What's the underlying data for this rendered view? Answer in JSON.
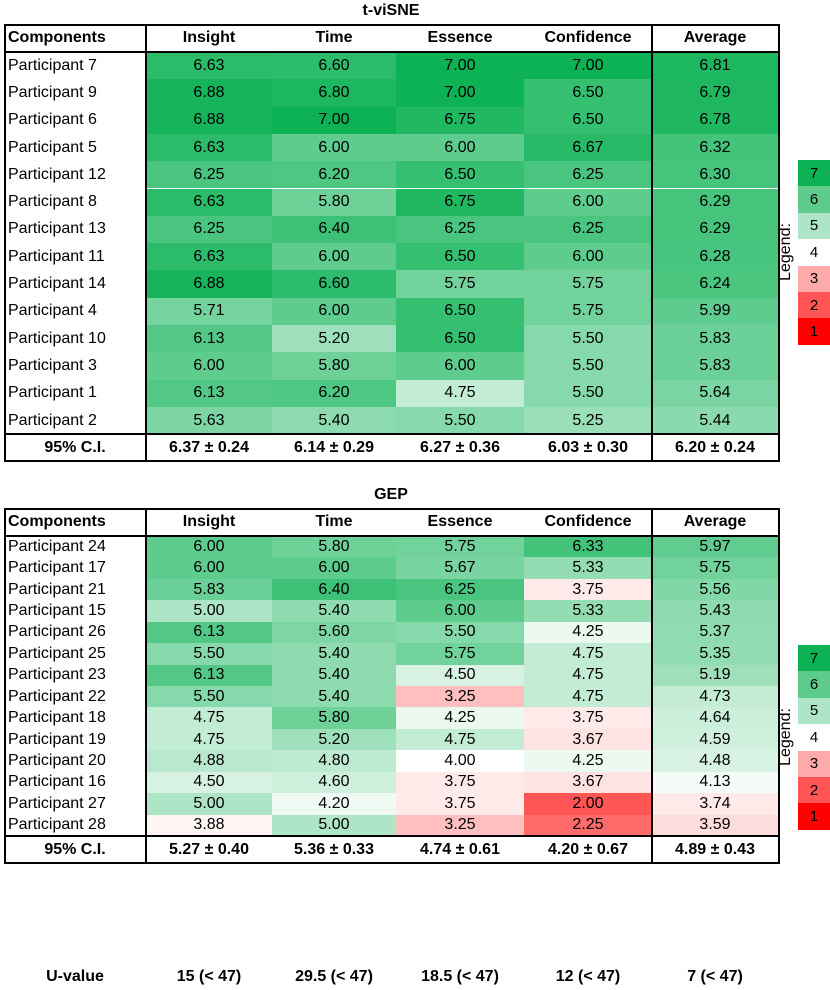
{
  "tables": [
    {
      "title": "t-viSNE",
      "columns": [
        "Components",
        "Insight",
        "Time",
        "Essence",
        "Confidence",
        "Average"
      ],
      "rows": [
        [
          "Participant 7",
          "6.63",
          "6.60",
          "7.00",
          "7.00",
          "6.81"
        ],
        [
          "Participant 9",
          "6.88",
          "6.80",
          "7.00",
          "6.50",
          "6.79"
        ],
        [
          "Participant 6",
          "6.88",
          "7.00",
          "6.75",
          "6.50",
          "6.78"
        ],
        [
          "Participant 5",
          "6.63",
          "6.00",
          "6.00",
          "6.67",
          "6.32"
        ],
        [
          "Participant 12",
          "6.25",
          "6.20",
          "6.50",
          "6.25",
          "6.30"
        ],
        [
          "Participant 8",
          "6.63",
          "5.80",
          "6.75",
          "6.00",
          "6.29"
        ],
        [
          "Participant 13",
          "6.25",
          "6.40",
          "6.25",
          "6.25",
          "6.29"
        ],
        [
          "Participant 11",
          "6.63",
          "6.00",
          "6.50",
          "6.00",
          "6.28"
        ],
        [
          "Participant 14",
          "6.88",
          "6.60",
          "5.75",
          "5.75",
          "6.24"
        ],
        [
          "Participant 4",
          "5.71",
          "6.00",
          "6.50",
          "5.75",
          "5.99"
        ],
        [
          "Participant 10",
          "6.13",
          "5.20",
          "6.50",
          "5.50",
          "5.83"
        ],
        [
          "Participant 3",
          "6.00",
          "5.80",
          "6.00",
          "5.50",
          "5.83"
        ],
        [
          "Participant 1",
          "6.13",
          "6.20",
          "4.75",
          "5.50",
          "5.64"
        ],
        [
          "Participant 2",
          "5.63",
          "5.40",
          "5.50",
          "5.25",
          "5.44"
        ]
      ],
      "summary": [
        "95% C.I.",
        "6.37 ± 0.24",
        "6.14 ± 0.29",
        "6.27 ± 0.36",
        "6.03 ± 0.30",
        "6.20 ± 0.24"
      ]
    },
    {
      "title": "GEP",
      "columns": [
        "Components",
        "Insight",
        "Time",
        "Essence",
        "Confidence",
        "Average"
      ],
      "rows": [
        [
          "Participant 24",
          "6.00",
          "5.80",
          "5.75",
          "6.33",
          "5.97"
        ],
        [
          "Participant 17",
          "6.00",
          "6.00",
          "5.67",
          "5.33",
          "5.75"
        ],
        [
          "Participant 21",
          "5.83",
          "6.40",
          "6.25",
          "3.75",
          "5.56"
        ],
        [
          "Participant 15",
          "5.00",
          "5.40",
          "6.00",
          "5.33",
          "5.43"
        ],
        [
          "Participant 26",
          "6.13",
          "5.60",
          "5.50",
          "4.25",
          "5.37"
        ],
        [
          "Participant 25",
          "5.50",
          "5.40",
          "5.75",
          "4.75",
          "5.35"
        ],
        [
          "Participant 23",
          "6.13",
          "5.40",
          "4.50",
          "4.75",
          "5.19"
        ],
        [
          "Participant 22",
          "5.50",
          "5.40",
          "3.25",
          "4.75",
          "4.73"
        ],
        [
          "Participant 18",
          "4.75",
          "5.80",
          "4.25",
          "3.75",
          "4.64"
        ],
        [
          "Participant 19",
          "4.75",
          "5.20",
          "4.75",
          "3.67",
          "4.59"
        ],
        [
          "Participant 20",
          "4.88",
          "4.80",
          "4.00",
          "4.25",
          "4.48"
        ],
        [
          "Participant 16",
          "4.50",
          "4.60",
          "3.75",
          "3.67",
          "4.13"
        ],
        [
          "Participant 27",
          "5.00",
          "4.20",
          "3.75",
          "2.00",
          "3.74"
        ],
        [
          "Participant 28",
          "3.88",
          "5.00",
          "3.25",
          "2.25",
          "3.59"
        ]
      ],
      "summary": [
        "95% C.I.",
        "5.27 ± 0.40",
        "5.36 ± 0.33",
        "4.74 ± 0.61",
        "4.20 ± 0.67",
        "4.89 ± 0.43"
      ]
    }
  ],
  "u_row": [
    "U-value",
    "15 (< 47)",
    "29.5 (< 47)",
    "18.5 (< 47)",
    "12 (< 47)",
    "7 (< 47)"
  ],
  "legend": {
    "title": "Legend:",
    "items": [
      7,
      6,
      5,
      4,
      3,
      2,
      1
    ]
  },
  "color_scale": {
    "low": "#ff0000",
    "mid": "#ffffff",
    "high": "#0db254"
  }
}
